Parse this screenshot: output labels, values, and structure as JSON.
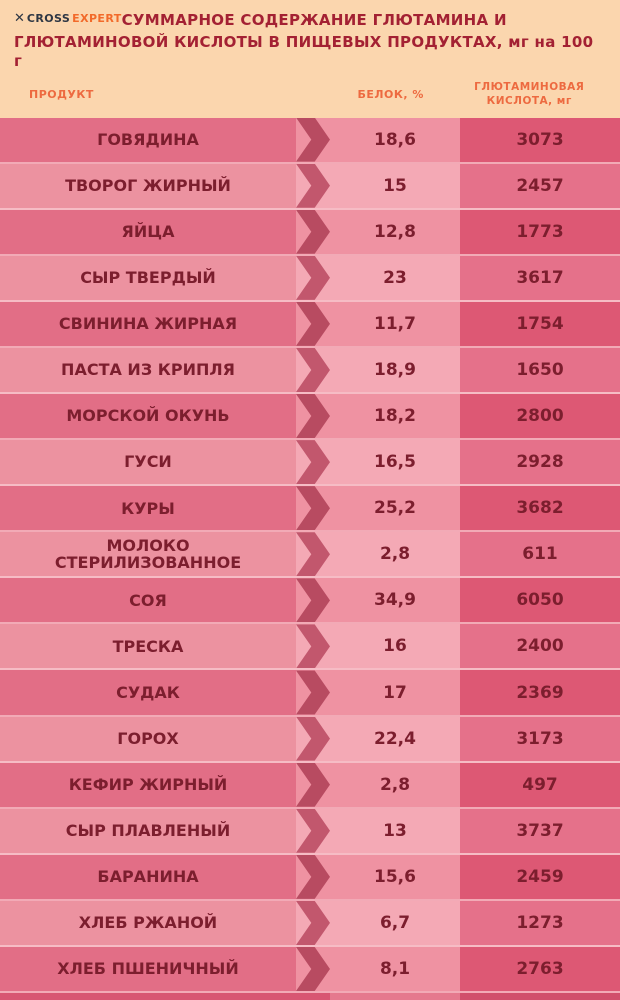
{
  "header": {
    "logo": {
      "icon": "✕",
      "cross": "CROSS",
      "expert": "EXPERT"
    },
    "title_line1": "СУММАРНОЕ СОДЕРЖАНИЕ ГЛЮТАМИНА И",
    "title_line2": "ГЛЮТАМИНОВОЙ КИСЛОТЫ В ПИЩЕВЫХ ПРОДУКТАХ, мг на 100 г"
  },
  "columns": {
    "product": "ПРОДУКТ",
    "protein": "БЕЛОК, %",
    "acid": "ГЛЮТАМИНОВАЯ КИСЛОТА, мг"
  },
  "colors": {
    "header_bg": "#fbd6ae",
    "title_text": "#a32133",
    "column_header_text": "#ed6a40",
    "row_odd_band": "#e26e86",
    "row_even_band": "#ec92a0",
    "arrow": "#b84b61",
    "acid_col_odd": "#dd5874",
    "acid_col_even": "#e5718a",
    "cell_text": "#7c1e2e"
  },
  "table": {
    "rows": [
      {
        "name": "ГОВЯДИНА",
        "protein": "18,6",
        "acid": "3073"
      },
      {
        "name": "ТВОРОГ ЖИРНЫЙ",
        "protein": "15",
        "acid": "2457"
      },
      {
        "name": "ЯЙЦА",
        "protein": "12,8",
        "acid": "1773"
      },
      {
        "name": "СЫР ТВЕРДЫЙ",
        "protein": "23",
        "acid": "3617"
      },
      {
        "name": "СВИНИНА ЖИРНАЯ",
        "protein": "11,7",
        "acid": "1754"
      },
      {
        "name": "ПАСТА ИЗ КРИПЛЯ",
        "protein": "18,9",
        "acid": "1650"
      },
      {
        "name": "МОРСКОЙ ОКУНЬ",
        "protein": "18,2",
        "acid": "2800"
      },
      {
        "name": "ГУСИ",
        "protein": "16,5",
        "acid": "2928"
      },
      {
        "name": "КУРЫ",
        "protein": "25,2",
        "acid": "3682"
      },
      {
        "name": "МОЛОКО СТЕРИЛИЗОВАННОЕ",
        "protein": "2,8",
        "acid": "611"
      },
      {
        "name": "СОЯ",
        "protein": "34,9",
        "acid": "6050"
      },
      {
        "name": "ТРЕСКА",
        "protein": "16",
        "acid": "2400"
      },
      {
        "name": "СУДАК",
        "protein": "17",
        "acid": "2369"
      },
      {
        "name": "ГОРОХ",
        "protein": "22,4",
        "acid": "3173"
      },
      {
        "name": "КЕФИР ЖИРНЫЙ",
        "protein": "2,8",
        "acid": "497"
      },
      {
        "name": "СЫР ПЛАВЛЕНЫЙ",
        "protein": "13",
        "acid": "3737"
      },
      {
        "name": "БАРАНИНА",
        "protein": "15,6",
        "acid": "2459"
      },
      {
        "name": "ХЛЕБ РЖАНОЙ",
        "protein": "6,7",
        "acid": "1273"
      },
      {
        "name": "ХЛЕБ ПШЕНИЧНЫЙ",
        "protein": "8,1",
        "acid": "2763"
      }
    ]
  },
  "chart_data": {
    "type": "table",
    "title": "СУММАРНОЕ СОДЕРЖАНИЕ ГЛЮТАМИНА И ГЛЮТАМИНОВОЙ КИСЛОТЫ В ПИЩЕВЫХ ПРОДУКТАХ, мг на 100 г",
    "columns": [
      "ПРОДУКТ",
      "БЕЛОК, %",
      "ГЛЮТАМИНОВАЯ КИСЛОТА, мг"
    ],
    "categories": [
      "ГОВЯДИНА",
      "ТВОРОГ ЖИРНЫЙ",
      "ЯЙЦА",
      "СЫР ТВЕРДЫЙ",
      "СВИНИНА ЖИРНАЯ",
      "ПАСТА ИЗ КРИПЛЯ",
      "МОРСКОЙ ОКУНЬ",
      "ГУСИ",
      "КУРЫ",
      "МОЛОКО СТЕРИЛИЗОВАННОЕ",
      "СОЯ",
      "ТРЕСКА",
      "СУДАК",
      "ГОРОХ",
      "КЕФИР ЖИРНЫЙ",
      "СЫР ПЛАВЛЕНЫЙ",
      "БАРАНИНА",
      "ХЛЕБ РЖАНОЙ",
      "ХЛЕБ ПШЕНИЧНЫЙ"
    ],
    "series": [
      {
        "name": "БЕЛОК, %",
        "values": [
          18.6,
          15,
          12.8,
          23,
          11.7,
          18.9,
          18.2,
          16.5,
          25.2,
          2.8,
          34.9,
          16,
          17,
          22.4,
          2.8,
          13,
          15.6,
          6.7,
          8.1
        ]
      },
      {
        "name": "ГЛЮТАМИНОВАЯ КИСЛОТА, мг",
        "values": [
          3073,
          2457,
          1773,
          3617,
          1754,
          1650,
          2800,
          2928,
          3682,
          611,
          6050,
          2400,
          2369,
          3173,
          497,
          3737,
          2459,
          1273,
          2763
        ]
      }
    ]
  }
}
